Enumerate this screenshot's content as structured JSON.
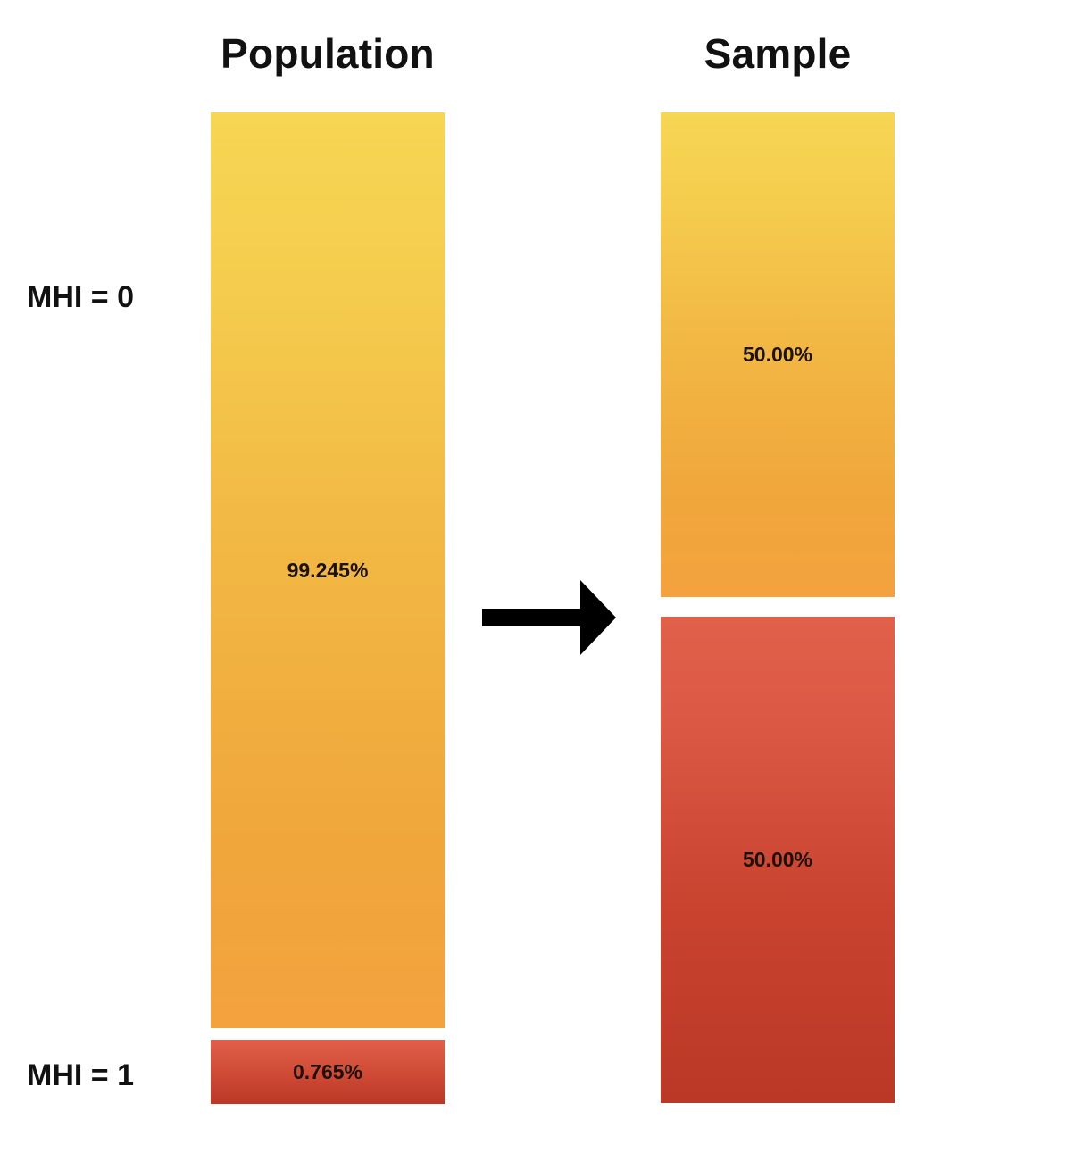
{
  "titles": {
    "population": "Population",
    "sample": "Sample"
  },
  "row_labels": {
    "mhi0": "MHI = 0",
    "mhi1": "MHI = 1"
  },
  "population": {
    "mhi0": {
      "label": "99.245%",
      "value": 99.245
    },
    "mhi1": {
      "label": "0.765%",
      "value": 0.765
    }
  },
  "sample": {
    "mhi0": {
      "label": "50.00%",
      "value": 50.0
    },
    "mhi1": {
      "label": "50.00%",
      "value": 50.0
    }
  },
  "colors": {
    "mhi0": "#f2b944",
    "mhi1": "#c9432f",
    "arrow": "#000000"
  }
}
